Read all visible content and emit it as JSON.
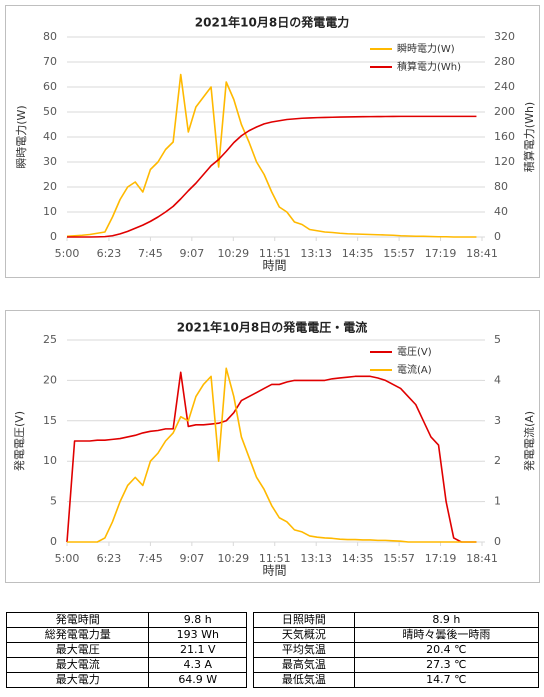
{
  "chart_data": [
    {
      "type": "line",
      "title": "2021年10月8日の発電電力",
      "xlabel": "時間",
      "ylabel": "瞬時電力(W)",
      "y2label": "積算電力(Wh)",
      "x": [
        300,
        315,
        330,
        345,
        360,
        375,
        390,
        405,
        420,
        435,
        450,
        465,
        480,
        495,
        510,
        525,
        540,
        555,
        570,
        585,
        600,
        615,
        630,
        645,
        660,
        675,
        690,
        705,
        720,
        735,
        750,
        765,
        780,
        795,
        810,
        825,
        840,
        855,
        870,
        885,
        900,
        915,
        930,
        945,
        960,
        975,
        990,
        1005,
        1020,
        1035,
        1050,
        1065,
        1080,
        1095,
        1110
      ],
      "xlim": [
        300,
        1121
      ],
      "xticks": [
        {
          "value": 300,
          "label": "5:00"
        },
        {
          "value": 383,
          "label": "6:23"
        },
        {
          "value": 465,
          "label": "7:45"
        },
        {
          "value": 547,
          "label": "9:07"
        },
        {
          "value": 629,
          "label": "10:29"
        },
        {
          "value": 711,
          "label": "11:51"
        },
        {
          "value": 793,
          "label": "13:13"
        },
        {
          "value": 875,
          "label": "14:35"
        },
        {
          "value": 957,
          "label": "15:57"
        },
        {
          "value": 1039,
          "label": "17:19"
        },
        {
          "value": 1121,
          "label": "18:41"
        }
      ],
      "ylim": [
        0,
        80
      ],
      "yticks": [
        0,
        10,
        20,
        30,
        40,
        50,
        60,
        70,
        80
      ],
      "y2lim": [
        0,
        320
      ],
      "y2ticks": [
        0,
        40,
        80,
        120,
        160,
        200,
        240,
        280,
        320
      ],
      "grid": true,
      "legend": "upper right",
      "series": [
        {
          "name": "瞬時電力(W)",
          "color": "#ffb900",
          "axis": "y",
          "values": [
            0.3,
            0.5,
            0.7,
            1,
            1.5,
            2,
            8,
            15,
            20,
            22,
            18,
            27,
            30,
            35,
            38,
            65,
            42,
            52,
            56,
            60,
            28,
            62,
            55,
            45,
            38,
            30,
            25,
            18,
            12,
            10,
            6,
            5,
            3,
            2.5,
            2,
            1.8,
            1.5,
            1.3,
            1.2,
            1.1,
            1,
            0.9,
            0.8,
            0.7,
            0.5,
            0.4,
            0.3,
            0.3,
            0.2,
            0.1,
            0.1,
            0,
            0,
            0,
            0
          ]
        },
        {
          "name": "積算電力(Wh)",
          "color": "#e00000",
          "axis": "y2",
          "values": [
            0,
            0,
            0,
            0,
            0.2,
            0.6,
            2,
            5,
            9,
            14,
            19,
            25,
            32,
            40,
            49,
            61,
            74,
            86,
            100,
            114,
            124,
            137,
            151,
            162,
            170,
            176,
            181,
            184,
            186,
            188,
            189,
            190,
            190.5,
            191,
            191.3,
            191.6,
            191.9,
            192.1,
            192.3,
            192.5,
            192.6,
            192.7,
            192.8,
            192.9,
            193,
            193,
            193,
            193,
            193,
            193,
            193,
            193,
            193,
            193,
            193
          ]
        }
      ]
    },
    {
      "type": "line",
      "title": "2021年10月8日の発電電圧・電流",
      "xlabel": "時間",
      "ylabel": "発電電圧(V)",
      "y2label": "発電電流(A)",
      "x": [
        300,
        315,
        330,
        345,
        360,
        375,
        390,
        405,
        420,
        435,
        450,
        465,
        480,
        495,
        510,
        525,
        540,
        555,
        570,
        585,
        600,
        615,
        630,
        645,
        660,
        675,
        690,
        705,
        720,
        735,
        750,
        765,
        780,
        795,
        810,
        825,
        840,
        855,
        870,
        885,
        900,
        915,
        930,
        945,
        960,
        975,
        990,
        1005,
        1020,
        1035,
        1050,
        1065,
        1080,
        1095,
        1110
      ],
      "xlim": [
        300,
        1121
      ],
      "xticks": [
        {
          "value": 300,
          "label": "5:00"
        },
        {
          "value": 383,
          "label": "6:23"
        },
        {
          "value": 465,
          "label": "7:45"
        },
        {
          "value": 547,
          "label": "9:07"
        },
        {
          "value": 629,
          "label": "10:29"
        },
        {
          "value": 711,
          "label": "11:51"
        },
        {
          "value": 793,
          "label": "13:13"
        },
        {
          "value": 875,
          "label": "14:35"
        },
        {
          "value": 957,
          "label": "15:57"
        },
        {
          "value": 1039,
          "label": "17:19"
        },
        {
          "value": 1121,
          "label": "18:41"
        }
      ],
      "ylim": [
        0,
        25
      ],
      "yticks": [
        0,
        5,
        10,
        15,
        20,
        25
      ],
      "y2lim": [
        0,
        5
      ],
      "y2ticks": [
        0,
        1,
        2,
        3,
        4,
        5
      ],
      "grid": true,
      "legend": "upper right",
      "series": [
        {
          "name": "電圧(V)",
          "color": "#e00000",
          "axis": "y",
          "values": [
            0,
            12.5,
            12.5,
            12.5,
            12.6,
            12.6,
            12.7,
            12.8,
            13,
            13.2,
            13.5,
            13.7,
            13.8,
            14,
            14,
            21,
            14.3,
            14.5,
            14.5,
            14.6,
            14.7,
            15,
            16,
            17.5,
            18,
            18.5,
            19,
            19.5,
            19.5,
            19.8,
            20,
            20,
            20,
            20,
            20,
            20.2,
            20.3,
            20.4,
            20.5,
            20.5,
            20.5,
            20.3,
            20,
            19.5,
            19,
            18,
            17,
            15,
            13,
            12,
            5,
            0.5,
            0,
            0,
            0
          ]
        },
        {
          "name": "電流(A)",
          "color": "#ffb900",
          "axis": "y2",
          "values": [
            0,
            0,
            0,
            0,
            0,
            0.1,
            0.5,
            1,
            1.4,
            1.6,
            1.4,
            2,
            2.2,
            2.5,
            2.7,
            3.1,
            3,
            3.6,
            3.9,
            4.1,
            2,
            4.3,
            3.6,
            2.6,
            2.1,
            1.6,
            1.3,
            0.9,
            0.6,
            0.5,
            0.3,
            0.25,
            0.15,
            0.12,
            0.1,
            0.09,
            0.07,
            0.06,
            0.06,
            0.05,
            0.05,
            0.04,
            0.04,
            0.03,
            0.02,
            0,
            0,
            0,
            0,
            0,
            0,
            0,
            0,
            0,
            0
          ]
        }
      ]
    }
  ],
  "table": {
    "rows": [
      [
        "発電時間",
        "9.8 h",
        "日照時間",
        "8.9 h"
      ],
      [
        "総発電電力量",
        "193 Wh",
        "天気概況",
        "晴時々曇後一時雨"
      ],
      [
        "最大電圧",
        "21.1 V",
        "平均気温",
        "20.4 ℃"
      ],
      [
        "最大電流",
        "4.3 A",
        "最高気温",
        "27.3 ℃"
      ],
      [
        "最大電力",
        "64.9 W",
        "最低気温",
        "14.7 ℃"
      ]
    ]
  }
}
